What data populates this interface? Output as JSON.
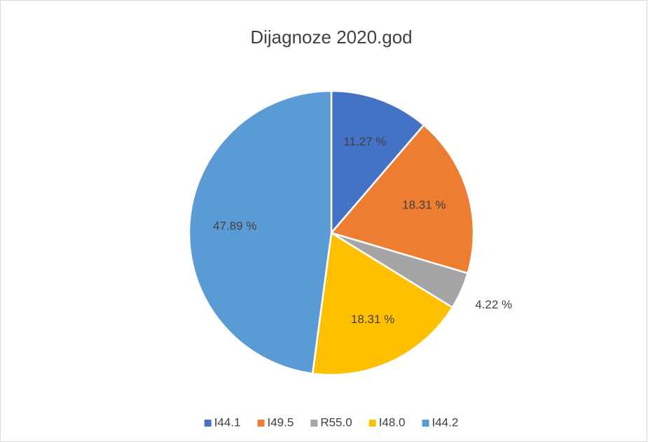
{
  "chart_data": {
    "type": "pie",
    "title": "Dijagnoze 2020.god",
    "categories": [
      "I44.1",
      "I49.5",
      "R55.0",
      "I48.0",
      "I44.2"
    ],
    "values": [
      11.27,
      18.31,
      4.22,
      18.31,
      47.89
    ],
    "value_labels": [
      "11.27 %",
      "18.31 %",
      "4.22 %",
      "18.31 %",
      "47.89 %"
    ],
    "colors": [
      "#4472c4",
      "#ed7d31",
      "#a5a5a5",
      "#ffc000",
      "#5b9bd5"
    ],
    "legend": "bottom"
  }
}
